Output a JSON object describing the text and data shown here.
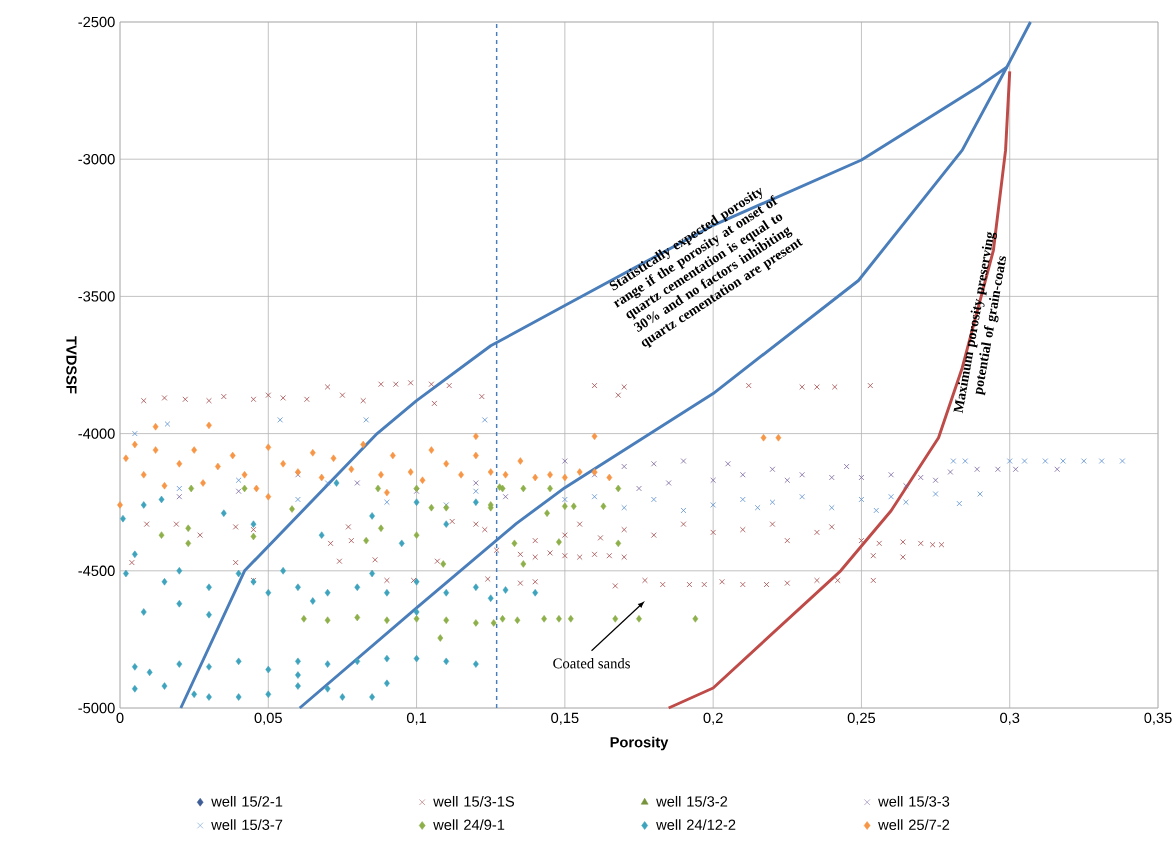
{
  "chart_data": {
    "type": "scatter",
    "xlabel": "Porosity",
    "ylabel": "TVDSSF",
    "xlim": [
      0,
      0.35
    ],
    "ylim": [
      -5000,
      -2500
    ],
    "xticks": [
      0,
      {
        "value": 0.05,
        "label": "0,05"
      },
      {
        "value": 0.1,
        "label": "0,1"
      },
      {
        "value": 0.15,
        "label": "0,15"
      },
      {
        "value": 0.2,
        "label": "0,2"
      },
      {
        "value": 0.25,
        "label": "0,25"
      },
      {
        "value": 0.3,
        "label": "0,3"
      },
      {
        "value": 0.35,
        "label": "0,35"
      }
    ],
    "yticks": [
      -5000,
      -4500,
      -4000,
      -3500,
      -3000,
      -2500
    ],
    "grid": true,
    "legend": "bottom",
    "ref_lines": [
      {
        "axis": "x",
        "value": 0.127,
        "color": "#4a7ebb",
        "line_style": "dashed"
      }
    ],
    "annotations": [
      "Statistically expected porosity range if the porosity at onset of quartz cementation is equal to 30% and no factors inhibiting quartz cementation are present",
      "Maximum porosity preserving potential of grain-coats",
      "Coated sands"
    ],
    "series": [
      {
        "name": "well 15/2-1",
        "color": "#3e5c96",
        "marker": "diamond"
      },
      {
        "name": "well 15/3-1S",
        "color": "#a5494a",
        "marker": "cross",
        "x": [
          0.008,
          0.015,
          0.022,
          0.03,
          0.035,
          0.045,
          0.05,
          0.055,
          0.063,
          0.07,
          0.075,
          0.082,
          0.088,
          0.093,
          0.098,
          0.105,
          0.111,
          0.122,
          0.106,
          0.16,
          0.17,
          0.168,
          0.212,
          0.23,
          0.235,
          0.241,
          0.253,
          0.009,
          0.004,
          0.019,
          0.027,
          0.039,
          0.045,
          0.039,
          0.045,
          0.071,
          0.077,
          0.078,
          0.074,
          0.086,
          0.09,
          0.099,
          0.112,
          0.12,
          0.123,
          0.124,
          0.107,
          0.127,
          0.135,
          0.14,
          0.145,
          0.15,
          0.155,
          0.16,
          0.165,
          0.17,
          0.14,
          0.15,
          0.155,
          0.162,
          0.17,
          0.18,
          0.19,
          0.2,
          0.21,
          0.22,
          0.225,
          0.235,
          0.24,
          0.25,
          0.256,
          0.264,
          0.27,
          0.274,
          0.277,
          0.264,
          0.254,
          0.135,
          0.14,
          0.167,
          0.177,
          0.183,
          0.192,
          0.197,
          0.203,
          0.21,
          0.218,
          0.225,
          0.235,
          0.242,
          0.254
        ],
        "values": [
          -3880,
          -3870,
          -3875,
          -3880,
          -3865,
          -3875,
          -3860,
          -3870,
          -3875,
          -3830,
          -3860,
          -3880,
          -3820,
          -3820,
          -3815,
          -3820,
          -3825,
          -3865,
          -3890,
          -3825,
          -3830,
          -3860,
          -3825,
          -3830,
          -3830,
          -3830,
          -3825,
          -4330,
          -4470,
          -4330,
          -4370,
          -4340,
          -4350,
          -4470,
          -4535,
          -4400,
          -4340,
          -4390,
          -4465,
          -4460,
          -4535,
          -4535,
          -4320,
          -4330,
          -4350,
          -4530,
          -4465,
          -4425,
          -4440,
          -4450,
          -4435,
          -4445,
          -4450,
          -4440,
          -4445,
          -4450,
          -4390,
          -4370,
          -4330,
          -4380,
          -4350,
          -4370,
          -4330,
          -4360,
          -4350,
          -4330,
          -4390,
          -4360,
          -4340,
          -4390,
          -4400,
          -4395,
          -4400,
          -4405,
          -4405,
          -4450,
          -4445,
          -4545,
          -4540,
          -4555,
          -4535,
          -4550,
          -4550,
          -4550,
          -4540,
          -4550,
          -4550,
          -4545,
          -4535,
          -4535,
          -4535
        ]
      },
      {
        "name": "well 15/3-2",
        "color": "#77933c",
        "marker": "triangle"
      },
      {
        "name": "well 15/3-3",
        "color": "#7a63a0",
        "marker": "cross",
        "x": [
          0.02,
          0.04,
          0.06,
          0.08,
          0.1,
          0.12,
          0.13,
          0.15,
          0.16,
          0.17,
          0.175,
          0.18,
          0.185,
          0.19,
          0.2,
          0.205,
          0.21,
          0.22,
          0.225,
          0.23,
          0.24,
          0.245,
          0.25,
          0.26,
          0.265,
          0.27,
          0.275,
          0.28,
          0.289,
          0.296,
          0.302,
          0.316
        ],
        "values": [
          -4230,
          -4210,
          -4150,
          -4180,
          -4210,
          -4180,
          -4230,
          -4100,
          -4150,
          -4120,
          -4200,
          -4110,
          -4180,
          -4100,
          -4170,
          -4110,
          -4150,
          -4130,
          -4170,
          -4150,
          -4160,
          -4120,
          -4160,
          -4150,
          -4190,
          -4160,
          -4170,
          -4140,
          -4130,
          -4130,
          -4130,
          -4130
        ]
      },
      {
        "name": "well 15/3-7",
        "color": "#5b8fd0",
        "marker": "cross",
        "x": [
          0.005,
          0.016,
          0.054,
          0.083,
          0.123,
          0.02,
          0.04,
          0.06,
          0.07,
          0.09,
          0.11,
          0.12,
          0.15,
          0.16,
          0.17,
          0.18,
          0.19,
          0.2,
          0.21,
          0.215,
          0.22,
          0.23,
          0.24,
          0.25,
          0.255,
          0.26,
          0.265,
          0.275,
          0.283,
          0.29,
          0.281,
          0.285,
          0.3,
          0.305,
          0.312,
          0.318,
          0.325,
          0.331,
          0.338
        ],
        "values": [
          -4000,
          -3965,
          -3950,
          -3950,
          -3950,
          -4200,
          -4170,
          -4240,
          -4180,
          -4250,
          -4260,
          -4210,
          -4240,
          -4230,
          -4270,
          -4240,
          -4280,
          -4260,
          -4240,
          -4270,
          -4250,
          -4230,
          -4270,
          -4240,
          -4280,
          -4230,
          -4250,
          -4220,
          -4255,
          -4220,
          -4100,
          -4100,
          -4100,
          -4100,
          -4100,
          -4100,
          -4100,
          -4100,
          -4100
        ]
      },
      {
        "name": "well 24/9-1",
        "color": "#8db04a",
        "marker": "diamond",
        "x": [
          0.024,
          0.042,
          0.014,
          0.023,
          0.023,
          0.045,
          0.058,
          0.088,
          0.083,
          0.087,
          0.1,
          0.1,
          0.105,
          0.11,
          0.125,
          0.109,
          0.128,
          0.062,
          0.07,
          0.08,
          0.09,
          0.1,
          0.11,
          0.12,
          0.108,
          0.126,
          0.129,
          0.134,
          0.143,
          0.148,
          0.152,
          0.167,
          0.175,
          0.194,
          0.129,
          0.136,
          0.145,
          0.168,
          0.125,
          0.15,
          0.153,
          0.163,
          0.168,
          0.148,
          0.133,
          0.136,
          0.144
        ],
        "values": [
          -4200,
          -4200,
          -4370,
          -4345,
          -4400,
          -4375,
          -4275,
          -4345,
          -4390,
          -4200,
          -4200,
          -4370,
          -4270,
          -4270,
          -4270,
          -4475,
          -4195,
          -4675,
          -4680,
          -4670,
          -4680,
          -4675,
          -4680,
          -4690,
          -4745,
          -4690,
          -4675,
          -4680,
          -4675,
          -4675,
          -4675,
          -4675,
          -4675,
          -4675,
          -4200,
          -4200,
          -4200,
          -4200,
          -4260,
          -4265,
          -4265,
          -4265,
          -4400,
          -4395,
          -4400,
          -4475,
          -4290
        ]
      },
      {
        "name": "well 24/12-2",
        "color": "#3ea3bd",
        "marker": "diamond",
        "x": [
          0.001,
          0.008,
          0.014,
          0.035,
          0.045,
          0.068,
          0.085,
          0.1,
          0.12,
          0.11,
          0.095,
          0.073,
          0.005,
          0.002,
          0.015,
          0.02,
          0.03,
          0.04,
          0.045,
          0.05,
          0.055,
          0.06,
          0.065,
          0.07,
          0.08,
          0.085,
          0.09,
          0.1,
          0.11,
          0.12,
          0.13,
          0.14,
          0.125,
          0.02,
          0.008,
          0.03,
          0.1,
          0.005,
          0.01,
          0.02,
          0.03,
          0.04,
          0.05,
          0.06,
          0.07,
          0.08,
          0.09,
          0.1,
          0.11,
          0.12,
          0.06,
          0.005,
          0.015,
          0.025,
          0.03,
          0.04,
          0.05,
          0.06,
          0.07,
          0.09,
          0.085,
          0.075
        ],
        "values": [
          -4310,
          -4260,
          -4240,
          -4290,
          -4330,
          -4370,
          -4300,
          -4250,
          -4250,
          -4330,
          -4400,
          -4180,
          -4440,
          -4510,
          -4540,
          -4500,
          -4560,
          -4510,
          -4540,
          -4580,
          -4500,
          -4560,
          -4610,
          -4580,
          -4560,
          -4510,
          -4580,
          -4540,
          -4580,
          -4560,
          -4570,
          -4580,
          -4600,
          -4620,
          -4650,
          -4660,
          -4650,
          -4850,
          -4870,
          -4840,
          -4850,
          -4830,
          -4860,
          -4830,
          -4840,
          -4830,
          -4820,
          -4820,
          -4830,
          -4840,
          -4880,
          -4930,
          -4920,
          -4950,
          -4960,
          -4960,
          -4950,
          -4920,
          -4930,
          -4910,
          -4960,
          -4960
        ]
      },
      {
        "name": "well 25/7-2",
        "color": "#f79646",
        "marker": "diamond",
        "x": [
          0.002,
          0.005,
          0.008,
          0.012,
          0.015,
          0.02,
          0.025,
          0.028,
          0.033,
          0.038,
          0.042,
          0.046,
          0.05,
          0.055,
          0.06,
          0.065,
          0.068,
          0.072,
          0.078,
          0.082,
          0.088,
          0.092,
          0.098,
          0.102,
          0.105,
          0.11,
          0.115,
          0.12,
          0.125,
          0.13,
          0.135,
          0.14,
          0.145,
          0.15,
          0.155,
          0.16,
          0.165,
          0.012,
          0.03,
          0.16,
          0.12,
          0.217,
          0.222,
          0.05,
          0.09,
          0.0
        ],
        "values": [
          -4090,
          -4040,
          -4150,
          -4060,
          -4190,
          -4110,
          -4060,
          -4180,
          -4120,
          -4080,
          -4150,
          -4200,
          -4050,
          -4110,
          -4140,
          -4070,
          -4160,
          -4090,
          -4130,
          -4040,
          -4150,
          -4080,
          -4140,
          -4170,
          -4060,
          -4110,
          -4150,
          -4080,
          -4140,
          -4150,
          -4100,
          -4160,
          -4150,
          -4160,
          -4140,
          -4140,
          -4160,
          -3975,
          -3970,
          -4010,
          -4010,
          -4015,
          -4015,
          -4230,
          -4215,
          -4260
        ]
      },
      {
        "type": "line",
        "color": "#4a7ebb",
        "marker": "none",
        "line_style": "solid",
        "x": [
          0.0205,
          0.042,
          0.0867,
          0.1,
          0.125,
          0.15,
          0.2,
          0.25,
          0.29,
          0.299,
          0.307
        ],
        "values": [
          -5000,
          -4500,
          -4000,
          -3880,
          -3680,
          -3533,
          -3241,
          -3003,
          -2732,
          -2665,
          -2500
        ]
      },
      {
        "type": "line",
        "color": "#4a7ebb",
        "marker": "none",
        "line_style": "solid",
        "x": [
          0.0606,
          0.1,
          0.1336,
          0.15,
          0.2,
          0.249,
          0.284,
          0.299
        ],
        "values": [
          -5000,
          -4635,
          -4328,
          -4197,
          -3854,
          -3442,
          -2967,
          -2665
        ]
      },
      {
        "type": "line",
        "color": "#be4b48",
        "marker": "none",
        "line_style": "solid",
        "x": [
          0.185,
          0.2,
          0.243,
          0.26,
          0.276,
          0.284,
          0.2945,
          0.2986,
          0.3
        ],
        "values": [
          -5000,
          -4927,
          -4500,
          -4281,
          -4015,
          -3760,
          -3332,
          -2967,
          -2680
        ]
      }
    ]
  }
}
